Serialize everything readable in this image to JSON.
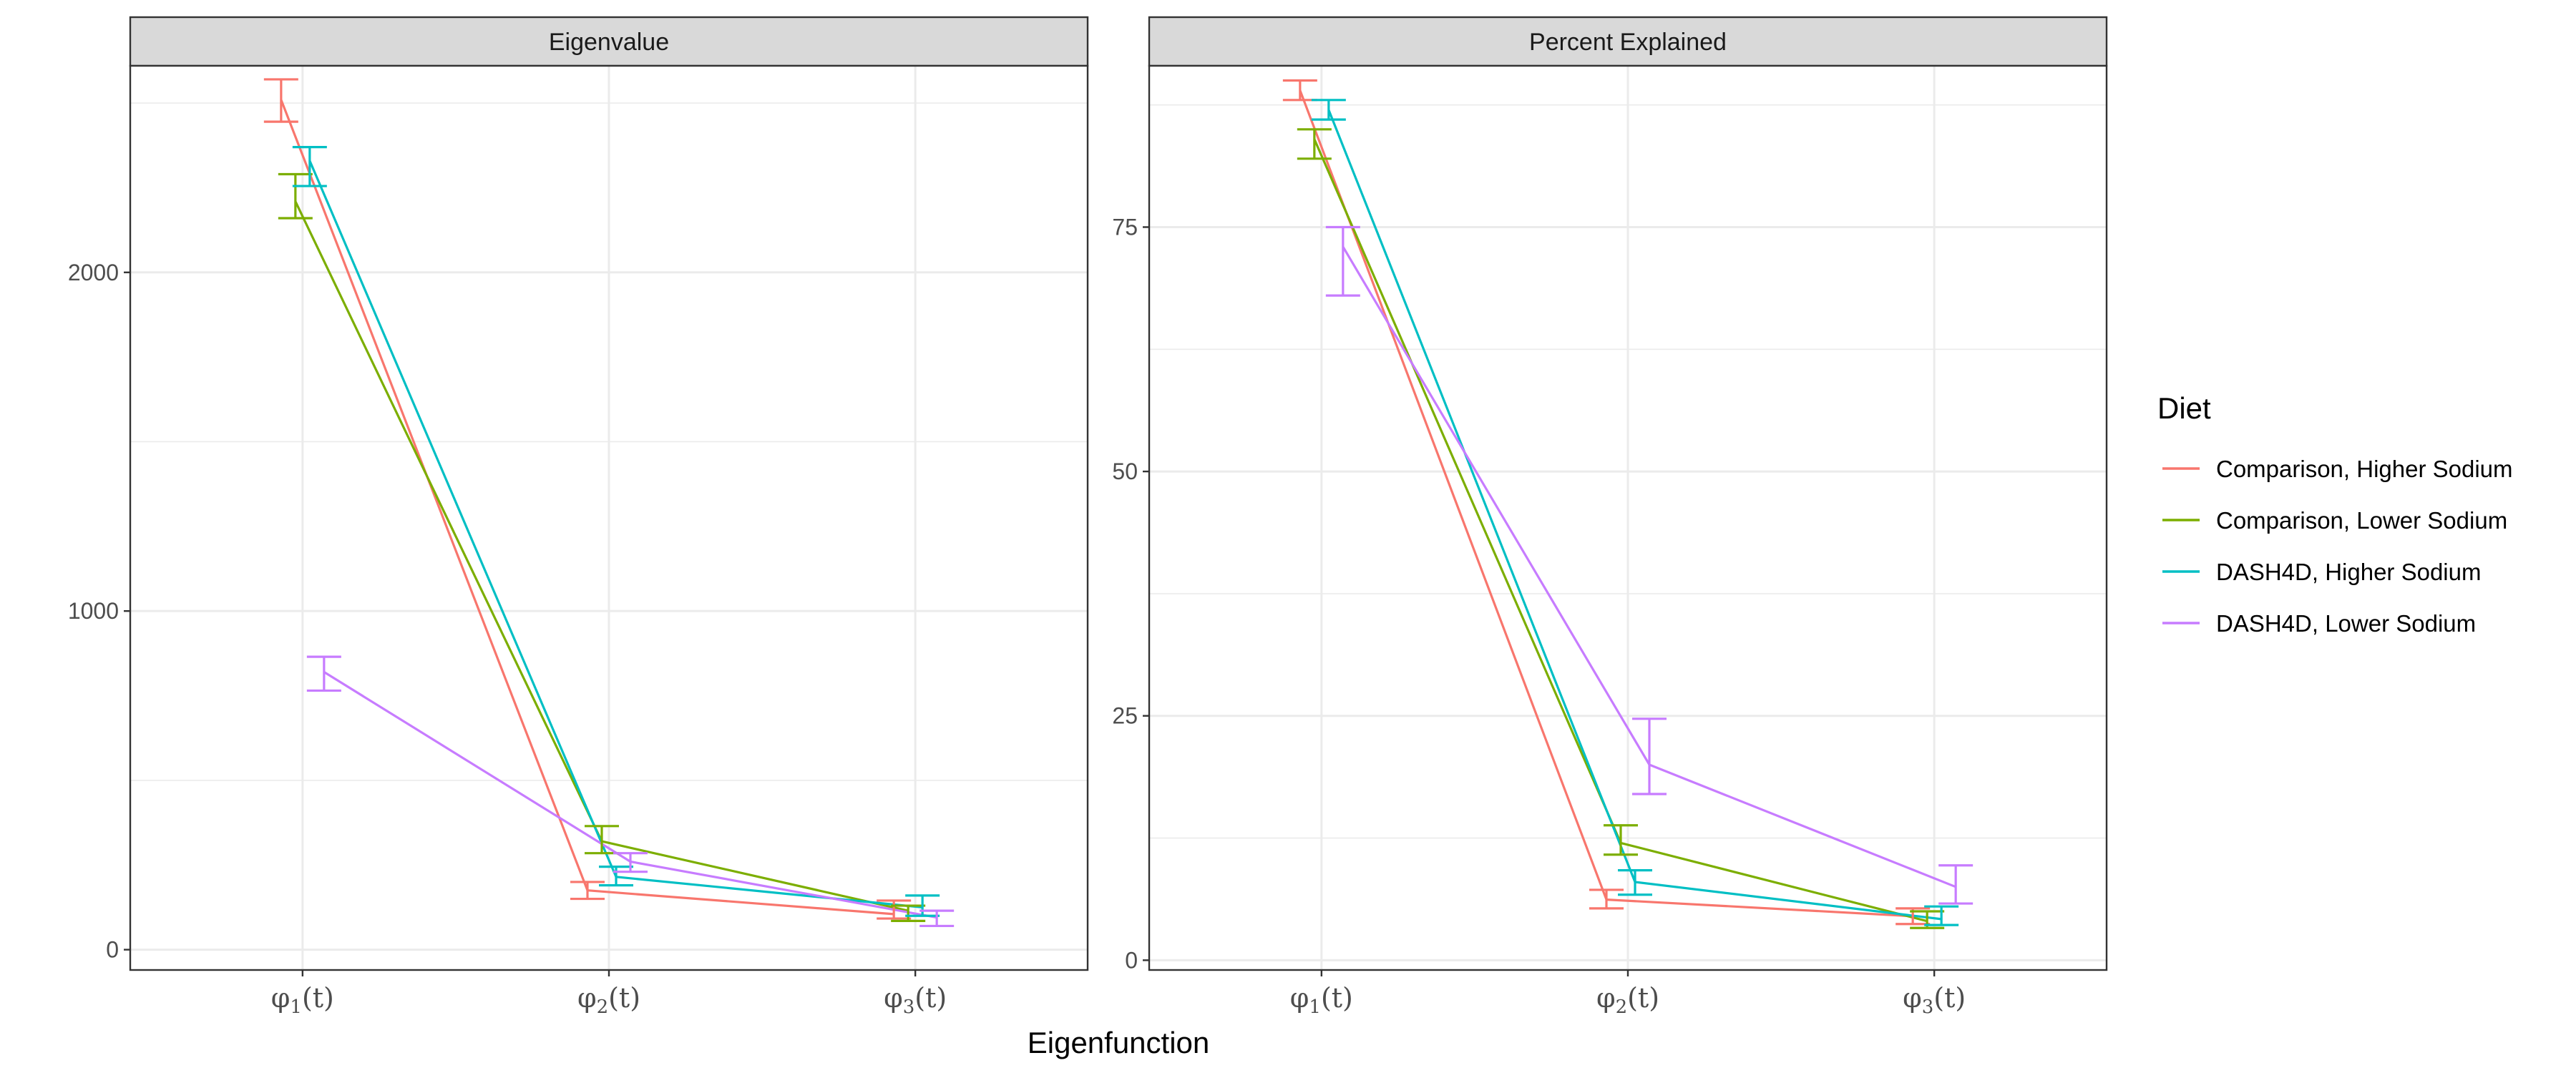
{
  "chart_data": {
    "type": "line",
    "xlabel": "Eigenfunction",
    "categories": [
      {
        "sym": "φ",
        "sub": "1",
        "tail": "(t)"
      },
      {
        "sym": "φ",
        "sub": "2",
        "tail": "(t)"
      },
      {
        "sym": "φ",
        "sub": "3",
        "tail": "(t)"
      }
    ],
    "legend": {
      "title": "Diet",
      "position": "right",
      "entries": [
        {
          "name": "Comparison, Higher Sodium",
          "color": "#F8766D"
        },
        {
          "name": "Comparison, Lower Sodium",
          "color": "#7CAE00"
        },
        {
          "name": "DASH4D, Higher Sodium",
          "color": "#00BFC4"
        },
        {
          "name": "DASH4D, Lower Sodium",
          "color": "#C77CFF"
        }
      ]
    },
    "panels": [
      {
        "title": "Eigenvalue",
        "ylim": [
          -60,
          2610
        ],
        "yticks": [
          0,
          1000,
          2000
        ],
        "ytick_labels": [
          "0",
          "1000",
          "2000"
        ],
        "minor_yticks": [
          500,
          1500,
          2500
        ],
        "series": [
          {
            "name": "Comparison, Higher Sodium",
            "color": "#F8766D",
            "values": [
              2510,
              175,
              105
            ],
            "lower": [
              2445,
              150,
              92
            ],
            "upper": [
              2570,
              200,
              145
            ]
          },
          {
            "name": "Comparison, Lower Sodium",
            "color": "#7CAE00",
            "values": [
              2210,
              320,
              115
            ],
            "lower": [
              2160,
              285,
              85
            ],
            "upper": [
              2290,
              365,
              130
            ]
          },
          {
            "name": "DASH4D, Higher Sodium",
            "color": "#00BFC4",
            "values": [
              2330,
              215,
              125
            ],
            "lower": [
              2255,
              190,
              100
            ],
            "upper": [
              2370,
              245,
              160
            ]
          },
          {
            "name": "DASH4D, Lower Sodium",
            "color": "#C77CFF",
            "values": [
              820,
              260,
              95
            ],
            "lower": [
              765,
              230,
              70
            ],
            "upper": [
              865,
              285,
              115
            ]
          }
        ]
      },
      {
        "title": "Percent Explained",
        "ylim": [
          -1,
          91.5
        ],
        "yticks": [
          0,
          25,
          50,
          75
        ],
        "ytick_labels": [
          "0",
          "25",
          "50",
          "75"
        ],
        "minor_yticks": [
          12.5,
          37.5,
          62.5,
          87.5
        ],
        "series": [
          {
            "name": "Comparison, Higher Sodium",
            "color": "#F8766D",
            "values": [
              89.0,
              6.2,
              4.5
            ],
            "lower": [
              88.0,
              5.3,
              3.7
            ],
            "upper": [
              90.0,
              7.2,
              5.3
            ]
          },
          {
            "name": "Comparison, Lower Sodium",
            "color": "#7CAE00",
            "values": [
              84.0,
              12.0,
              4.0
            ],
            "lower": [
              82.0,
              10.8,
              3.3
            ],
            "upper": [
              85.0,
              13.8,
              5.0
            ]
          },
          {
            "name": "DASH4D, Higher Sodium",
            "color": "#00BFC4",
            "values": [
              87.0,
              8.0,
              4.2
            ],
            "lower": [
              86.0,
              6.7,
              3.6
            ],
            "upper": [
              88.0,
              9.2,
              5.5
            ]
          },
          {
            "name": "DASH4D, Lower Sodium",
            "color": "#C77CFF",
            "values": [
              73.0,
              20.0,
              7.5
            ],
            "lower": [
              68.0,
              17.0,
              5.8
            ],
            "upper": [
              75.0,
              24.7,
              9.7
            ]
          }
        ]
      }
    ]
  }
}
